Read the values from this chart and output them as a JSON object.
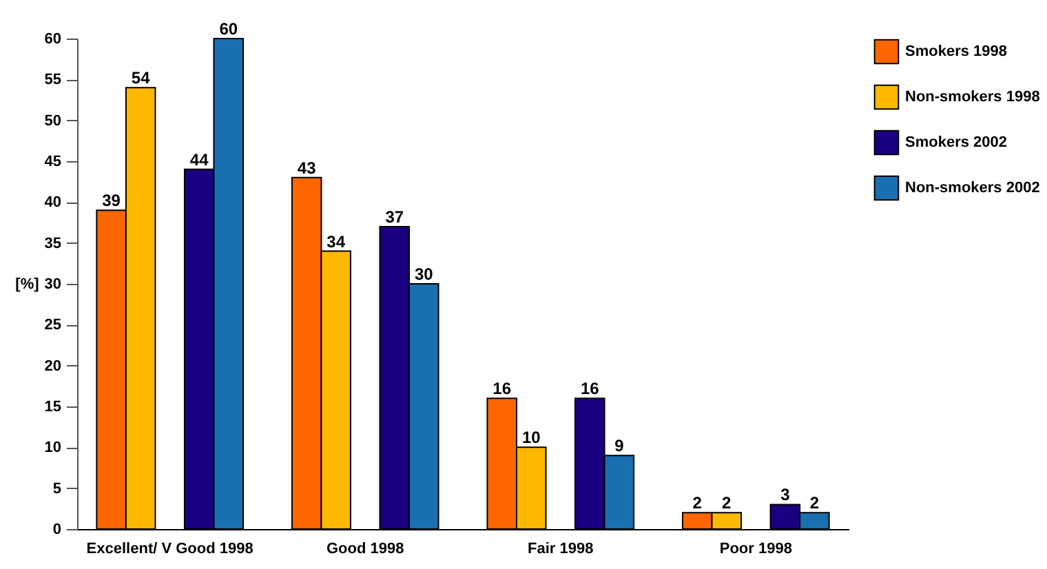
{
  "chart_data": {
    "type": "bar",
    "ylabel": "[%]",
    "categories": [
      "Excellent/ V Good 1998",
      "Good 1998",
      "Fair 1998",
      "Poor 1998"
    ],
    "series": [
      {
        "name": "Smokers 1998",
        "color": "#ff6600",
        "values": [
          39,
          43,
          16,
          2
        ]
      },
      {
        "name": "Non-smokers 1998",
        "color": "#ffb800",
        "values": [
          54,
          34,
          10,
          2
        ]
      },
      {
        "name": "Smokers 2002",
        "color": "#1a0080",
        "values": [
          44,
          37,
          16,
          3
        ]
      },
      {
        "name": "Non-smokers 2002",
        "color": "#1a6fb0",
        "values": [
          60,
          30,
          9,
          2
        ]
      }
    ],
    "ylim": [
      0,
      60
    ],
    "yticks": [
      0,
      5,
      10,
      15,
      20,
      25,
      30,
      35,
      40,
      45,
      50,
      55,
      60
    ],
    "data_labels": true,
    "grid": false,
    "legend": "right"
  }
}
